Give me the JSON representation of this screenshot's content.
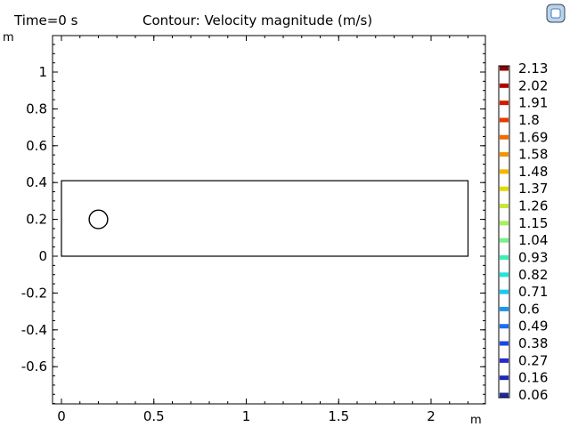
{
  "header": {
    "time_label": "Time=0 s",
    "plot_title": "Contour: Velocity magnitude (m/s)"
  },
  "colors": {
    "logo_blue": "#1f5fb0",
    "logo_light": "#bcd3ea",
    "line": "#000000"
  },
  "chart_data": {
    "type": "contour",
    "title": "Contour: Velocity magnitude (m/s)",
    "x_unit": "m",
    "y_unit": "m",
    "xlim": [
      -0.05,
      2.22
    ],
    "ylim": [
      -0.8,
      1.2
    ],
    "x_ticks": [
      0,
      0.5,
      1,
      1.5,
      2
    ],
    "x_tick_labels": [
      "0",
      "0.5",
      "1",
      "1.5",
      "2"
    ],
    "y_ticks": [
      1,
      0.8,
      0.6,
      0.4,
      0.2,
      0,
      -0.2,
      -0.4,
      -0.6
    ],
    "y_tick_labels": [
      "1",
      "0.8",
      "0.6",
      "0.4",
      "0.2",
      "0",
      "-0.2",
      "-0.4",
      "-0.6"
    ],
    "grid": false,
    "geometry": {
      "channel": {
        "x0": 0,
        "x1": 2.2,
        "y0": 0,
        "y1": 0.41
      },
      "cylinder": {
        "cx": 0.2,
        "cy": 0.2,
        "r": 0.05
      }
    },
    "colorbar": {
      "placement": "right",
      "levels": [
        2.13,
        2.02,
        1.91,
        1.8,
        1.69,
        1.58,
        1.48,
        1.37,
        1.26,
        1.15,
        1.04,
        0.93,
        0.82,
        0.71,
        0.6,
        0.49,
        0.38,
        0.27,
        0.16,
        0.06
      ],
      "labels": [
        "2.13",
        "2.02",
        "1.91",
        "1.8",
        "1.69",
        "1.58",
        "1.48",
        "1.37",
        "1.26",
        "1.15",
        "1.04",
        "0.93",
        "0.82",
        "0.71",
        "0.6",
        "0.49",
        "0.38",
        "0.27",
        "0.16",
        "0.06"
      ],
      "colors": [
        "#8b0000",
        "#b20000",
        "#d41a00",
        "#e63b00",
        "#f26a00",
        "#f59300",
        "#f7b400",
        "#e6d800",
        "#c8e63c",
        "#a6f05a",
        "#78f08c",
        "#3ef0b4",
        "#1ee6dc",
        "#1ec8f0",
        "#1e96f0",
        "#1e6ef0",
        "#1e46e6",
        "#2828d2",
        "#1e28b4",
        "#1e2896"
      ]
    }
  }
}
